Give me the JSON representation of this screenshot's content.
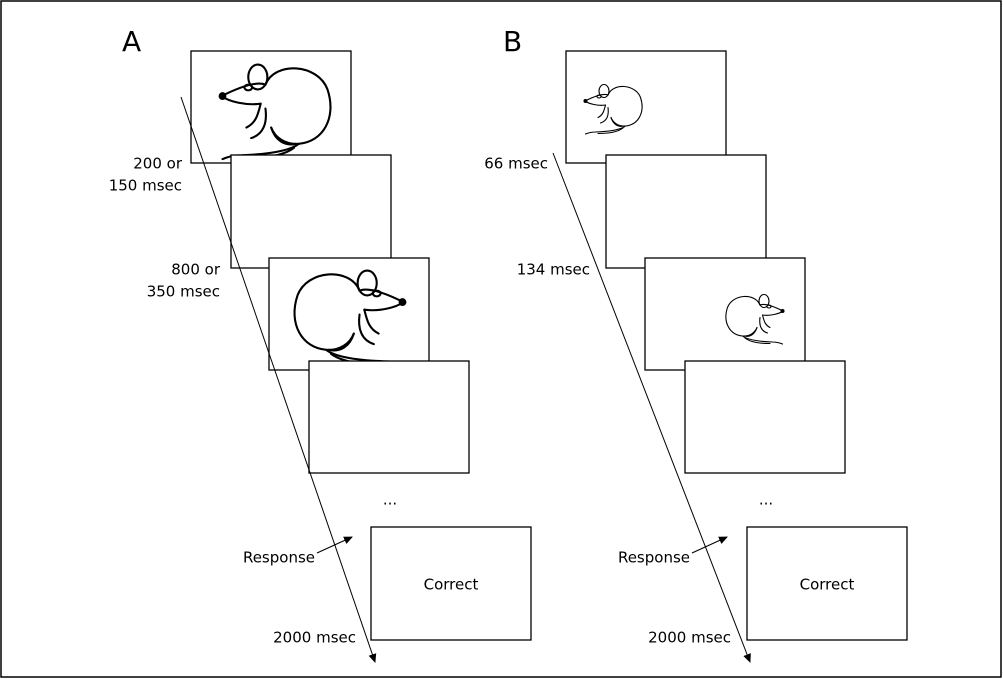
{
  "panels": [
    {
      "label": "A",
      "timings": [
        [
          "200 or",
          "150 msec"
        ],
        [
          "800 or",
          "350 msec"
        ]
      ],
      "ellipsis": "...",
      "response": "Response",
      "feedback": "Correct",
      "final_time": "2000 msec"
    },
    {
      "label": "B",
      "timings": [
        [
          "66 msec"
        ],
        [
          "134 msec"
        ]
      ],
      "ellipsis": "...",
      "response": "Response",
      "feedback": "Correct",
      "final_time": "2000 msec"
    }
  ]
}
